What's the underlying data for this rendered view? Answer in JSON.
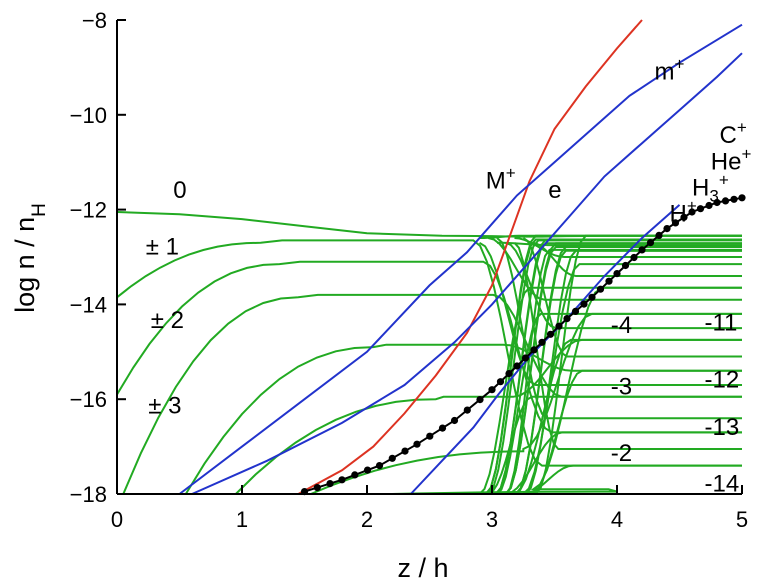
{
  "chart_data": {
    "type": "line",
    "xlabel": "z / h",
    "ylabel": "log n / n",
    "ylabel_subscript": "H",
    "xlim": [
      0,
      5
    ],
    "ylim": [
      -18,
      -8
    ],
    "xticks": [
      0,
      1,
      2,
      3,
      4,
      5
    ],
    "yticks": [
      -18,
      -16,
      -14,
      -12,
      -10,
      -8
    ],
    "ytick_labels": [
      "−18",
      "−16",
      "−14",
      "−12",
      "−10",
      "−8"
    ],
    "grid": false,
    "colors": {
      "grain": "#22aa22",
      "electron": "#dd3322",
      "ion": "#2233cc",
      "dots": "#000000"
    },
    "series": [
      {
        "id": "e",
        "color": "#dd3322",
        "x": [
          1.45,
          1.8,
          2.05,
          2.3,
          2.55,
          2.8,
          3.0,
          3.15,
          3.3,
          3.5,
          3.75,
          4.0,
          4.2
        ],
        "y": [
          -18,
          -17.5,
          -17.0,
          -16.3,
          -15.5,
          -14.6,
          -13.6,
          -12.5,
          -11.4,
          -10.3,
          -9.4,
          -8.6,
          -8.0
        ]
      },
      {
        "id": "M+",
        "color": "#2233cc",
        "x": [
          0.5,
          1.0,
          1.5,
          2.0,
          2.5,
          2.8,
          3.0,
          3.2,
          3.5,
          3.8,
          4.1,
          4.5,
          5.0
        ],
        "y": [
          -18,
          -17.0,
          -16.0,
          -15.0,
          -13.6,
          -12.9,
          -12.3,
          -11.7,
          -11.0,
          -10.3,
          -9.6,
          -8.9,
          -8.1
        ]
      },
      {
        "id": "C+",
        "color": "#2233cc",
        "x": [
          0.6,
          1.2,
          1.8,
          2.3,
          2.7,
          3.0,
          3.3,
          3.6,
          3.9,
          4.2,
          4.5,
          4.8,
          5.0
        ],
        "y": [
          -18,
          -17.3,
          -16.5,
          -15.7,
          -14.8,
          -14.0,
          -13.1,
          -12.2,
          -11.3,
          -10.6,
          -9.9,
          -9.2,
          -8.7
        ]
      },
      {
        "id": "H3+",
        "color": "#2233cc",
        "x": [
          2.35,
          2.6,
          2.85,
          3.05,
          3.3,
          3.6,
          3.9,
          4.2,
          4.5
        ],
        "y": [
          -18,
          -17.3,
          -16.6,
          -15.9,
          -15.1,
          -14.3,
          -13.4,
          -12.6,
          -11.9
        ]
      },
      {
        "id": "dots",
        "color": "#000000",
        "x": [
          1.5,
          1.8,
          2.1,
          2.4,
          2.7,
          3.0,
          3.2,
          3.4,
          3.6,
          3.8,
          4.0,
          4.2,
          4.4,
          4.6,
          4.8,
          5.0
        ],
        "y": [
          -17.95,
          -17.7,
          -17.4,
          -16.95,
          -16.45,
          -15.8,
          -15.3,
          -14.8,
          -14.3,
          -13.85,
          -13.35,
          -12.85,
          -12.4,
          -12.05,
          -11.85,
          -11.75
        ]
      }
    ],
    "grain_levels": [
      -12.55,
      -12.65,
      -12.75,
      -12.85,
      -13.0,
      -13.15,
      -13.4,
      -13.65,
      -13.9,
      -14.2,
      -14.5,
      -14.75,
      -15.1,
      -15.4,
      -15.7,
      -15.95,
      -16.4,
      -16.7,
      -17.05,
      -17.4
    ],
    "grain_neutral": {
      "x": [
        0.0,
        0.5,
        1.0,
        1.5,
        2.0,
        2.6,
        3.0,
        3.2,
        3.4,
        3.6,
        4.0,
        5.0
      ],
      "y": [
        -12.05,
        -12.1,
        -12.2,
        -12.35,
        -12.5,
        -12.55,
        -12.56,
        -12.57,
        -12.57,
        -12.56,
        -12.55,
        -12.55
      ]
    },
    "labels": [
      {
        "text": "0",
        "x": 0.45,
        "y": -11.75
      },
      {
        "text": "± 1",
        "x": 0.23,
        "y": -12.95
      },
      {
        "text": "± 2",
        "x": 0.27,
        "y": -14.5
      },
      {
        "text": "± 3",
        "x": 0.25,
        "y": -16.3
      },
      {
        "text": "M",
        "sup": "+",
        "x": 2.95,
        "y": -11.55
      },
      {
        "text": "e",
        "x": 3.45,
        "y": -11.75
      },
      {
        "text": "m",
        "sup": "+",
        "x": 4.3,
        "y": -9.25
      },
      {
        "text": "C",
        "sup": "+",
        "x": 4.82,
        "y": -10.6
      },
      {
        "text": "He",
        "sup": "+",
        "x": 4.75,
        "y": -11.15
      },
      {
        "text": "H",
        "sub": "3",
        "sup": "+",
        "x": 4.6,
        "y": -11.7
      },
      {
        "text": "H",
        "sup": "+",
        "x": 4.42,
        "y": -12.25
      },
      {
        "text": "-4",
        "x": 3.95,
        "y": -14.6
      },
      {
        "text": "-3",
        "x": 3.95,
        "y": -15.9
      },
      {
        "text": "-2",
        "x": 3.95,
        "y": -17.3
      },
      {
        "text": "-11",
        "x": 4.7,
        "y": -14.55
      },
      {
        "text": "-12",
        "x": 4.7,
        "y": -15.75
      },
      {
        "text": "-13",
        "x": 4.7,
        "y": -16.75
      },
      {
        "text": "-14",
        "x": 4.7,
        "y": -17.95
      }
    ]
  }
}
